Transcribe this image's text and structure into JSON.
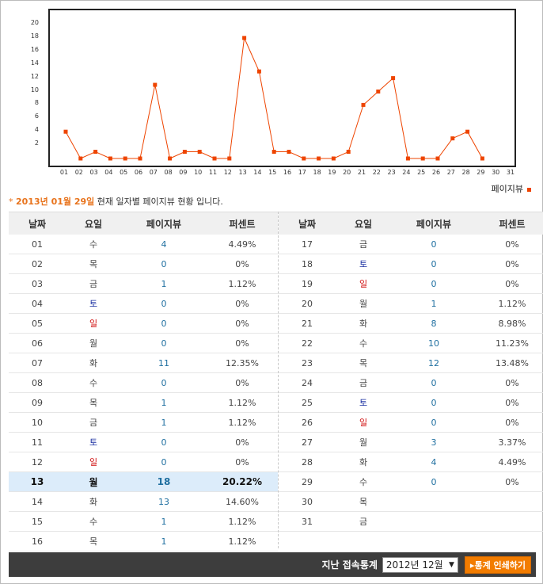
{
  "chart_data": {
    "type": "line",
    "x": [
      "01",
      "02",
      "03",
      "04",
      "05",
      "06",
      "07",
      "08",
      "09",
      "10",
      "11",
      "12",
      "13",
      "14",
      "15",
      "16",
      "17",
      "18",
      "19",
      "20",
      "21",
      "22",
      "23",
      "24",
      "25",
      "26",
      "27",
      "28",
      "29",
      "30",
      "31"
    ],
    "values": [
      4,
      0,
      1,
      0,
      0,
      0,
      11,
      0,
      1,
      1,
      0,
      0,
      18,
      13,
      1,
      1,
      0,
      0,
      0,
      1,
      8,
      10,
      12,
      0,
      0,
      0,
      3,
      4,
      0,
      null,
      null
    ],
    "y_ticks": [
      "2",
      "4",
      "6",
      "8",
      "10",
      "12",
      "14",
      "16",
      "18",
      "20"
    ],
    "ylim": [
      0,
      20
    ],
    "series_color": "#ee4400",
    "legend": "페이지뷰",
    "legend_position": "bottom-right"
  },
  "caption": {
    "prefix": "*",
    "date": "2013년 01월 29일",
    "text": "현재 일자별 페이지뷰 현황 입니다."
  },
  "table": {
    "headers": [
      "날짜",
      "요일",
      "페이지뷰",
      "퍼센트"
    ],
    "left_rows": [
      {
        "date": "01",
        "day": "수",
        "views": "4",
        "pct": "4.49%",
        "type": "normal"
      },
      {
        "date": "02",
        "day": "목",
        "views": "0",
        "pct": "0%",
        "type": "normal"
      },
      {
        "date": "03",
        "day": "금",
        "views": "1",
        "pct": "1.12%",
        "type": "normal"
      },
      {
        "date": "04",
        "day": "토",
        "views": "0",
        "pct": "0%",
        "type": "sat"
      },
      {
        "date": "05",
        "day": "일",
        "views": "0",
        "pct": "0%",
        "type": "sun"
      },
      {
        "date": "06",
        "day": "월",
        "views": "0",
        "pct": "0%",
        "type": "normal"
      },
      {
        "date": "07",
        "day": "화",
        "views": "11",
        "pct": "12.35%",
        "type": "normal"
      },
      {
        "date": "08",
        "day": "수",
        "views": "0",
        "pct": "0%",
        "type": "normal"
      },
      {
        "date": "09",
        "day": "목",
        "views": "1",
        "pct": "1.12%",
        "type": "normal"
      },
      {
        "date": "10",
        "day": "금",
        "views": "1",
        "pct": "1.12%",
        "type": "normal"
      },
      {
        "date": "11",
        "day": "토",
        "views": "0",
        "pct": "0%",
        "type": "sat"
      },
      {
        "date": "12",
        "day": "일",
        "views": "0",
        "pct": "0%",
        "type": "sun"
      },
      {
        "date": "13",
        "day": "월",
        "views": "18",
        "pct": "20.22%",
        "type": "highlight"
      },
      {
        "date": "14",
        "day": "화",
        "views": "13",
        "pct": "14.60%",
        "type": "normal"
      },
      {
        "date": "15",
        "day": "수",
        "views": "1",
        "pct": "1.12%",
        "type": "normal"
      },
      {
        "date": "16",
        "day": "목",
        "views": "1",
        "pct": "1.12%",
        "type": "normal"
      }
    ],
    "right_rows": [
      {
        "date": "17",
        "day": "금",
        "views": "0",
        "pct": "0%",
        "type": "normal"
      },
      {
        "date": "18",
        "day": "토",
        "views": "0",
        "pct": "0%",
        "type": "sat"
      },
      {
        "date": "19",
        "day": "일",
        "views": "0",
        "pct": "0%",
        "type": "sun"
      },
      {
        "date": "20",
        "day": "월",
        "views": "1",
        "pct": "1.12%",
        "type": "normal"
      },
      {
        "date": "21",
        "day": "화",
        "views": "8",
        "pct": "8.98%",
        "type": "normal"
      },
      {
        "date": "22",
        "day": "수",
        "views": "10",
        "pct": "11.23%",
        "type": "normal"
      },
      {
        "date": "23",
        "day": "목",
        "views": "12",
        "pct": "13.48%",
        "type": "normal"
      },
      {
        "date": "24",
        "day": "금",
        "views": "0",
        "pct": "0%",
        "type": "normal"
      },
      {
        "date": "25",
        "day": "토",
        "views": "0",
        "pct": "0%",
        "type": "sat"
      },
      {
        "date": "26",
        "day": "일",
        "views": "0",
        "pct": "0%",
        "type": "sun"
      },
      {
        "date": "27",
        "day": "월",
        "views": "3",
        "pct": "3.37%",
        "type": "normal"
      },
      {
        "date": "28",
        "day": "화",
        "views": "4",
        "pct": "4.49%",
        "type": "normal"
      },
      {
        "date": "29",
        "day": "수",
        "views": "0",
        "pct": "0%",
        "type": "normal"
      },
      {
        "date": "30",
        "day": "목",
        "views": "",
        "pct": "",
        "type": "normal"
      },
      {
        "date": "31",
        "day": "금",
        "views": "",
        "pct": "",
        "type": "normal"
      }
    ]
  },
  "bottom": {
    "label": "지난 접속통계",
    "month_value": "2012년 12월",
    "print_button": "▸통계 인쇄하기"
  },
  "colors": {
    "accent": "#e8731c",
    "saturday": "#1a2fa0",
    "sunday": "#d01010",
    "views": "#1f6fa0",
    "highlight_row": "#dcecfa"
  }
}
